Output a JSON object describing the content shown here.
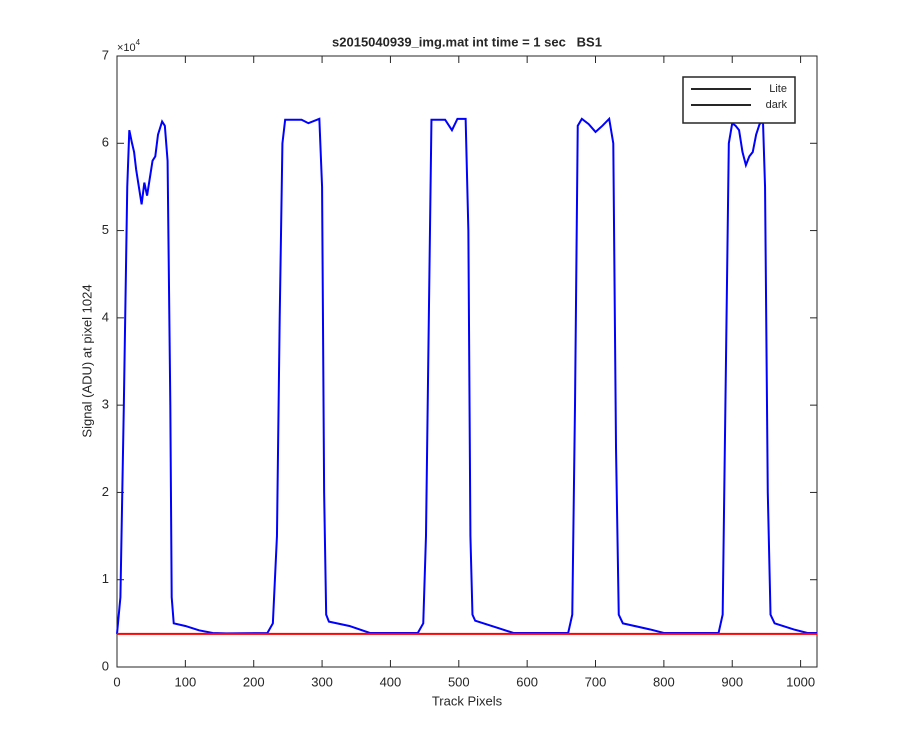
{
  "chart_data": {
    "type": "line",
    "title": "s2015040939_img.mat int time = 1 sec   BS1",
    "x_label": "Track Pixels",
    "y_label": "Signal (ADU) at pixel 1024",
    "y_exponent": {
      "base": "×10",
      "power": "4"
    },
    "xlim": [
      0,
      1024
    ],
    "ylim": [
      0,
      70000
    ],
    "xticks": [
      0,
      100,
      200,
      300,
      400,
      500,
      600,
      700,
      800,
      900,
      1000
    ],
    "yticks": [
      {
        "value": 0,
        "label": "0"
      },
      {
        "value": 10000,
        "label": "1"
      },
      {
        "value": 20000,
        "label": "2"
      },
      {
        "value": 30000,
        "label": "3"
      },
      {
        "value": 40000,
        "label": "4"
      },
      {
        "value": 50000,
        "label": "5"
      },
      {
        "value": 60000,
        "label": "6"
      },
      {
        "value": 70000,
        "label": "7"
      }
    ],
    "grid": false,
    "legend": "northeast",
    "series": [
      {
        "name": "Lite",
        "color": "#0000ff",
        "x": [
          0,
          5,
          10,
          15,
          18,
          22,
          25,
          28,
          32,
          36,
          40,
          44,
          48,
          52,
          56,
          60,
          66,
          70,
          74,
          78,
          80,
          83,
          100,
          120,
          140,
          160,
          220,
          228,
          234,
          238,
          242,
          246,
          270,
          280,
          296,
          300,
          303,
          306,
          310,
          340,
          370,
          440,
          448,
          452,
          457,
          460,
          480,
          490,
          498,
          510,
          514,
          517,
          520,
          524,
          560,
          580,
          660,
          666,
          670,
          674,
          680,
          690,
          700,
          710,
          720,
          726,
          730,
          734,
          740,
          780,
          800,
          880,
          886,
          890,
          895,
          900,
          905,
          910,
          915,
          920,
          925,
          930,
          935,
          940,
          945,
          948,
          952,
          956,
          962,
          990,
          1010,
          1024
        ],
        "values": [
          3800,
          8000,
          30000,
          55000,
          61500,
          60000,
          59000,
          57000,
          55000,
          53000,
          55500,
          54000,
          56000,
          58000,
          58500,
          61000,
          62500,
          62000,
          58000,
          30000,
          8000,
          5000,
          4700,
          4200,
          3900,
          3850,
          3900,
          5000,
          15000,
          40000,
          60000,
          62700,
          62700,
          62300,
          62800,
          55000,
          20000,
          6000,
          5200,
          4700,
          3900,
          3900,
          5000,
          15000,
          45000,
          62700,
          62700,
          61500,
          62800,
          62800,
          50000,
          15000,
          6000,
          5300,
          4400,
          3900,
          3900,
          6000,
          30000,
          62000,
          62800,
          62200,
          61300,
          62000,
          62800,
          60000,
          25000,
          6000,
          5000,
          4300,
          3900,
          3900,
          6000,
          30000,
          60000,
          62300,
          62000,
          61500,
          59000,
          57500,
          58500,
          59000,
          61000,
          62200,
          62500,
          55000,
          20000,
          6000,
          5000,
          4300,
          3900,
          3900
        ]
      },
      {
        "name": "dark",
        "color": "#ff0000",
        "x": [
          0,
          1024
        ],
        "values": [
          3800,
          3800
        ]
      }
    ]
  }
}
